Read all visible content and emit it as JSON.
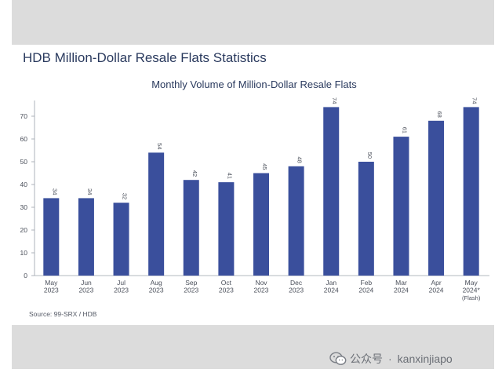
{
  "report_title": "HDB Million-Dollar Resale Flats Statistics",
  "source_note": "Source: 99-SRX / HDB",
  "watermark": {
    "platform": "公众号",
    "separator": "·",
    "account": "kanxinjiapo",
    "icon": "wechat-icon"
  },
  "colors": {
    "bar": "#3a4f9c",
    "band": "#dcdcdc",
    "title": "#2a3a5e",
    "axis_text": "#4a4f5a"
  },
  "chart_data": {
    "type": "bar",
    "title": "Monthly Volume of Million-Dollar Resale Flats",
    "xlabel": "",
    "ylabel": "",
    "ylim": [
      0,
      75
    ],
    "yticks": [
      0,
      10,
      20,
      30,
      40,
      50,
      60,
      70
    ],
    "grid": false,
    "categories": [
      [
        "May",
        "2023"
      ],
      [
        "Jun",
        "2023"
      ],
      [
        "Jul",
        "2023"
      ],
      [
        "Aug",
        "2023"
      ],
      [
        "Sep",
        "2023"
      ],
      [
        "Oct",
        "2023"
      ],
      [
        "Nov",
        "2023"
      ],
      [
        "Dec",
        "2023"
      ],
      [
        "Jan",
        "2024"
      ],
      [
        "Feb",
        "2024"
      ],
      [
        "Mar",
        "2024"
      ],
      [
        "Apr",
        "2024"
      ],
      [
        "May",
        "2024*",
        "(Flash)"
      ]
    ],
    "values": [
      34,
      34,
      32,
      54,
      42,
      41,
      45,
      48,
      74,
      50,
      61,
      68,
      74
    ],
    "data_labels": true
  }
}
